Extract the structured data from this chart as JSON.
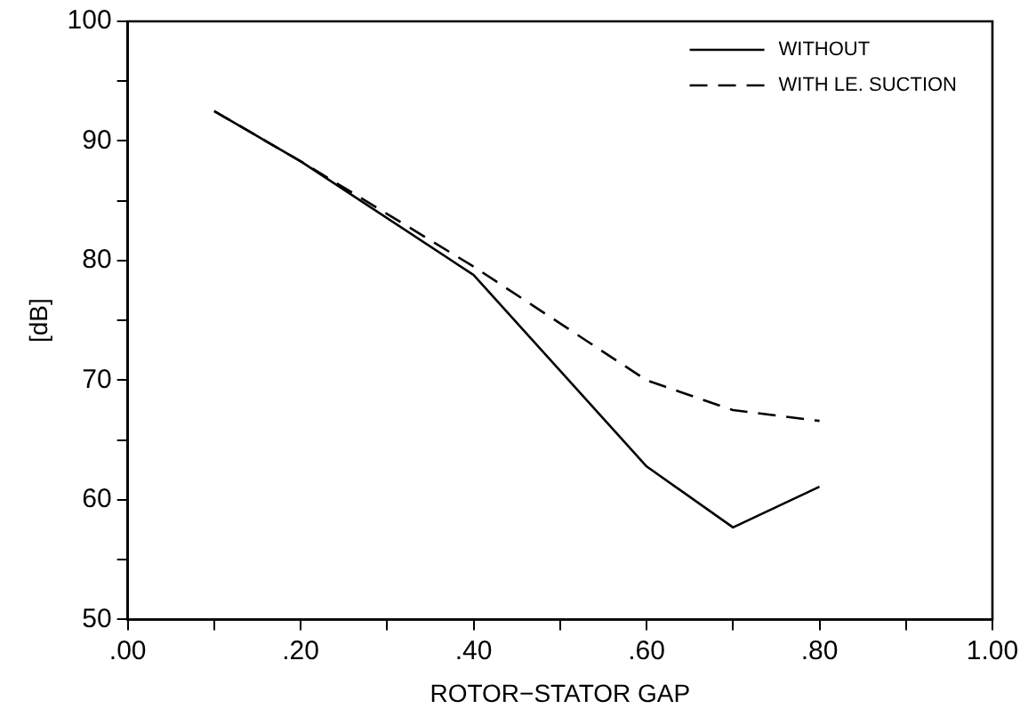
{
  "chart_data": {
    "type": "line",
    "xlabel": "ROTOR−STATOR GAP",
    "ylabel": "[dB]",
    "x": [
      0.1,
      0.2,
      0.4,
      0.6,
      0.7,
      0.8
    ],
    "series": [
      {
        "name": "WITHOUT",
        "color": "#000000",
        "line_style": "solid",
        "values": [
          92.5,
          88.3,
          78.8,
          62.8,
          57.7,
          61.1
        ]
      },
      {
        "name": "WITH LE. SUCTION",
        "color": "#000000",
        "line_style": "dashed",
        "values": [
          92.5,
          88.3,
          79.5,
          70,
          67.5,
          66.6
        ]
      }
    ],
    "xlim": [
      0,
      1
    ],
    "xticks": [
      {
        "value": 0,
        "label": ".00"
      },
      {
        "value": 0.1,
        "label": null
      },
      {
        "value": 0.2,
        "label": ".20"
      },
      {
        "value": 0.3,
        "label": null
      },
      {
        "value": 0.4,
        "label": ".40"
      },
      {
        "value": 0.5,
        "label": null
      },
      {
        "value": 0.6,
        "label": ".60"
      },
      {
        "value": 0.7,
        "label": null
      },
      {
        "value": 0.8,
        "label": ".80"
      },
      {
        "value": 0.9,
        "label": null
      },
      {
        "value": 1,
        "label": "1.00"
      }
    ],
    "ylim": [
      50,
      100
    ],
    "yticks": [
      50,
      {
        "value": 55,
        "label": null
      },
      60,
      {
        "value": 65,
        "label": null
      },
      70,
      {
        "value": 75,
        "label": null
      },
      80,
      {
        "value": 85,
        "label": null
      },
      90,
      {
        "value": 95,
        "label": null
      },
      100
    ],
    "grid": false,
    "legend": "top right",
    "marker": "none"
  }
}
